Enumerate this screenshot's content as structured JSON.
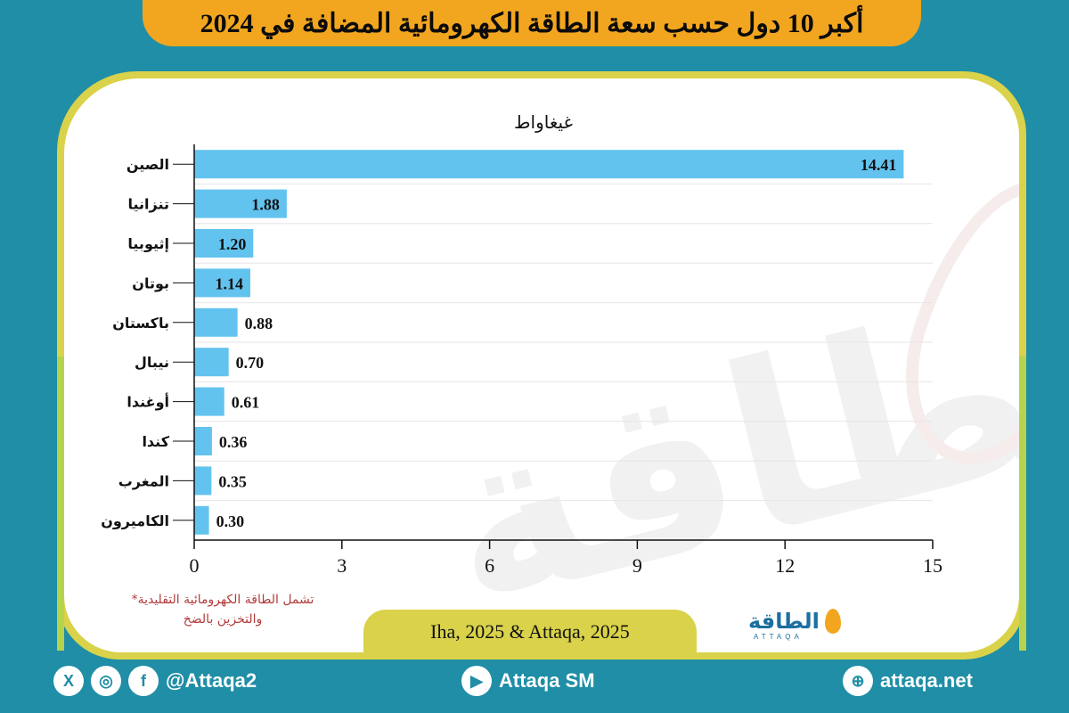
{
  "header": {
    "title": "أكبر 10 دول حسب سعة الطاقة الكهرومائية المضافة في 2024"
  },
  "chart_data": {
    "type": "bar",
    "orientation": "horizontal",
    "unit_label": "غيغاواط",
    "categories": [
      "الصين",
      "تنزانيا",
      "إثيوبيا",
      "بوتان",
      "باكستان",
      "نيبال",
      "أوغندا",
      "كندا",
      "المغرب",
      "الكاميرون"
    ],
    "values": [
      14.41,
      1.88,
      1.2,
      1.14,
      0.88,
      0.7,
      0.61,
      0.36,
      0.35,
      0.3
    ],
    "value_labels": [
      "14.41",
      "1.88",
      "1.20",
      "1.14",
      "0.88",
      "0.70",
      "0.61",
      "0.36",
      "0.35",
      "0.30"
    ],
    "xlim": [
      0,
      15
    ],
    "x_ticks": [
      0,
      3,
      6,
      9,
      12,
      15
    ],
    "grid": true,
    "bar_color": "#63c3ef"
  },
  "note": {
    "line1": "*تشمل الطاقة الكهرومائية التقليدية",
    "line2": "والتخزين بالضخ"
  },
  "source": "Iha, 2025 & Attaqa, 2025",
  "logo": {
    "text": "الطاقة",
    "sub": "ATTAQA"
  },
  "watermark": {
    "text": "الطاقة"
  },
  "footer": {
    "social_handle": "@Attaqa2",
    "youtube": "Attaqa SM",
    "website": "attaqa.net"
  },
  "colors": {
    "background": "#1f8ea6",
    "title_bar": "#f2a61f",
    "frame": "#d9d24a",
    "note": "#b33a3a"
  }
}
